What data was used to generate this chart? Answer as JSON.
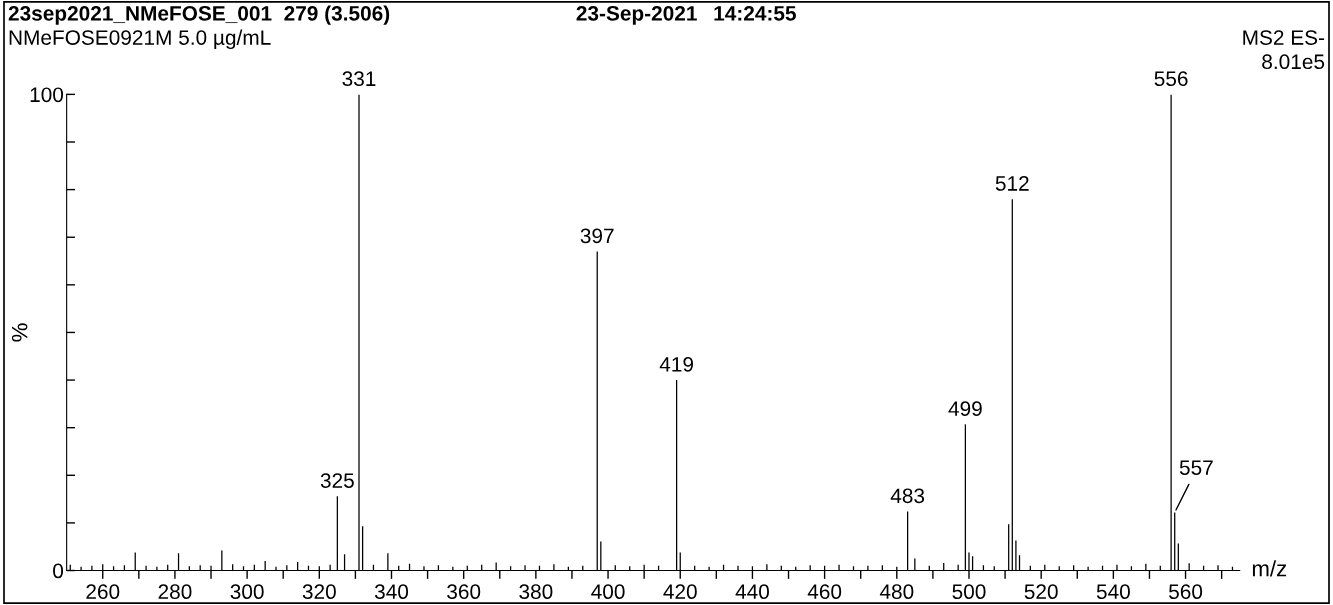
{
  "chart_data": {
    "type": "bar",
    "title": "23sep2021_NMeFOSE_001  279 (3.506)",
    "subtitle": "NMeFOSE0921M 5.0 µg/mL",
    "xlabel": "m/z",
    "ylabel": "%",
    "annotations": [
      "23-Sep-2021",
      "14:24:55",
      "MS2 ES-",
      "8.01e5",
      {
        "text": "331",
        "x": 331,
        "y": 100
      },
      {
        "text": "556",
        "x": 556,
        "y": 100
      },
      {
        "text": "512",
        "x": 512,
        "y": 78
      },
      {
        "text": "397",
        "x": 397,
        "y": 67
      },
      {
        "text": "419",
        "x": 419,
        "y": 40
      },
      {
        "text": "499",
        "x": 499,
        "y": 30.7
      },
      {
        "text": "483",
        "x": 483,
        "y": 12.4
      },
      {
        "text": "325",
        "x": 325,
        "y": 15.6
      },
      {
        "text": "557",
        "x": 557,
        "y": 12.2
      }
    ],
    "x": [
      251,
      254,
      257,
      260,
      263,
      266,
      269,
      272,
      275,
      278,
      281,
      284,
      287,
      290,
      293,
      296,
      299,
      302,
      305,
      308,
      311,
      314,
      317,
      320,
      323,
      325,
      327,
      331,
      332,
      335,
      339,
      342,
      345,
      349,
      353,
      357,
      361,
      365,
      369,
      373,
      377,
      381,
      385,
      389,
      393,
      397,
      398,
      402,
      406,
      410,
      414,
      419,
      420,
      424,
      428,
      432,
      436,
      440,
      444,
      448,
      452,
      456,
      460,
      464,
      468,
      472,
      476,
      480,
      483,
      485,
      489,
      493,
      497,
      499,
      500,
      501,
      504,
      507,
      511,
      512,
      513,
      514,
      517,
      521,
      525,
      529,
      533,
      537,
      541,
      545,
      549,
      553,
      556,
      557,
      558,
      561,
      565,
      569,
      573
    ],
    "values": [
      1.2,
      0.8,
      1.0,
      1.3,
      0.9,
      1.1,
      3.8,
      1.0,
      0.8,
      1.2,
      3.6,
      0.9,
      1.1,
      1.0,
      4.2,
      1.3,
      0.9,
      1.2,
      2.0,
      0.8,
      1.1,
      1.8,
      1.0,
      0.9,
      1.2,
      15.6,
      3.4,
      100,
      9.3,
      1.2,
      3.6,
      1.0,
      1.4,
      0.9,
      1.1,
      0.8,
      1.0,
      1.2,
      1.7,
      0.9,
      1.1,
      1.0,
      1.3,
      0.8,
      1.0,
      67,
      6.1,
      1.1,
      0.9,
      1.2,
      1.0,
      40,
      3.8,
      1.0,
      0.8,
      1.2,
      1.0,
      0.9,
      1.3,
      1.0,
      0.8,
      1.1,
      1.0,
      1.2,
      0.9,
      1.0,
      1.1,
      0.8,
      12.4,
      2.5,
      1.0,
      1.6,
      1.2,
      30.7,
      3.8,
      3.0,
      1.1,
      0.9,
      9.7,
      78,
      6.3,
      3.2,
      1.0,
      1.2,
      0.9,
      1.1,
      0.8,
      1.0,
      1.2,
      0.9,
      1.4,
      1.0,
      100,
      12.2,
      5.7,
      1.5,
      1.0,
      1.1,
      0.8
    ],
    "color": "#000000",
    "xlim": [
      250,
      575
    ],
    "ylim": [
      0,
      100
    ],
    "xticks": [
      260,
      {
        "value": 270,
        "label": null
      },
      280,
      {
        "value": 290,
        "label": null
      },
      300,
      {
        "value": 310,
        "label": null
      },
      320,
      {
        "value": 330,
        "label": null
      },
      340,
      {
        "value": 350,
        "label": null
      },
      360,
      {
        "value": 370,
        "label": null
      },
      380,
      {
        "value": 390,
        "label": null
      },
      400,
      {
        "value": 410,
        "label": null
      },
      420,
      {
        "value": 430,
        "label": null
      },
      440,
      {
        "value": 450,
        "label": null
      },
      460,
      {
        "value": 470,
        "label": null
      },
      480,
      {
        "value": 490,
        "label": null
      },
      500,
      {
        "value": 510,
        "label": null
      },
      520,
      {
        "value": 530,
        "label": null
      },
      540,
      {
        "value": 550,
        "label": null
      },
      560,
      {
        "value": 570,
        "label": null
      }
    ],
    "yticks": [
      0,
      {
        "value": 10,
        "label": null
      },
      {
        "value": 20,
        "label": null
      },
      {
        "value": 30,
        "label": null
      },
      {
        "value": 40,
        "label": null
      },
      {
        "value": 50,
        "label": null
      },
      {
        "value": 60,
        "label": null
      },
      {
        "value": 70,
        "label": null
      },
      {
        "value": 80,
        "label": null
      },
      {
        "value": 90,
        "label": null
      },
      100
    ],
    "grid": false,
    "legend": false
  }
}
